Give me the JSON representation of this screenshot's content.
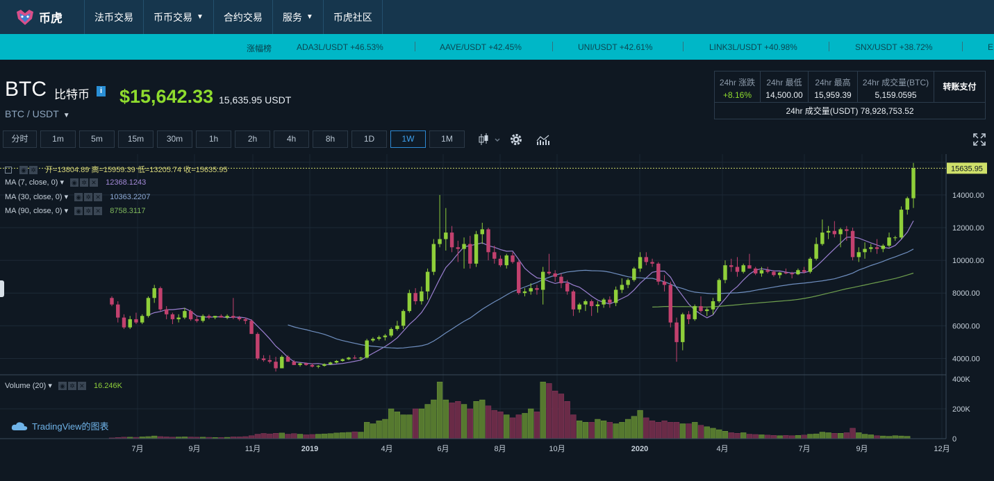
{
  "nav": {
    "brand": "币虎",
    "items": [
      {
        "label": "法币交易",
        "caret": false
      },
      {
        "label": "币币交易",
        "caret": true
      },
      {
        "label": "合约交易",
        "caret": false
      },
      {
        "label": "服务",
        "caret": true
      },
      {
        "label": "币虎社区",
        "caret": false
      }
    ]
  },
  "ticker": {
    "label": "涨幅榜",
    "items": [
      "ADA3L/USDT +46.53%",
      "AAVE/USDT +42.45%",
      "UNI/USDT +42.61%",
      "LINK3L/USDT +40.98%",
      "SNX/USDT +38.72%",
      "E"
    ]
  },
  "header": {
    "symbol": "BTC",
    "symbol_cn": "比特币",
    "info_icon": "i",
    "price": "$15,642.33",
    "price_usdt": "15,635.95 USDT",
    "pair": "BTC / USDT"
  },
  "stats": {
    "change_label": "24hr 涨跌",
    "change_value": "+8.16%",
    "low_label": "24hr 最低",
    "low_value": "14,500.00",
    "high_label": "24hr 最高",
    "high_value": "15,959.39",
    "vol_btc_label": "24hr 成交量(BTC)",
    "vol_btc_value": "5,159.0595",
    "pay_label": "转账支付",
    "vol_usdt": "24hr 成交量(USDT) 78,928,753.52"
  },
  "intervals": [
    "分时",
    "1m",
    "5m",
    "15m",
    "30m",
    "1h",
    "2h",
    "4h",
    "8h",
    "1D",
    "1W",
    "1M"
  ],
  "active_interval": "1W",
  "legend": {
    "ohlc": "开=13804.89  高=15959.39  低=13205.74  收=15635.95",
    "ma7_label": "MA (7, close, 0)",
    "ma7_value": "12368.1243",
    "ma30_label": "MA (30, close, 0)",
    "ma30_value": "10363.2207",
    "ma90_label": "MA (90, close, 0)",
    "ma90_value": "8758.3117",
    "volume_label": "Volume (20)",
    "volume_value": "16.246K",
    "last_price_tag": "15635.95"
  },
  "watermark": "TradingView的图表",
  "colors": {
    "up": "#8fcf3a",
    "down": "#c2416e",
    "ma7": "#9b7fd0",
    "ma30": "#6f8fc0",
    "ma90": "#6fa04e",
    "accent": "#2e8bd6",
    "ticker_bg": "#00b7c7",
    "nav_bg": "#16364d"
  },
  "chart_data": {
    "type": "candlestick",
    "x_tick_labels": [
      "7月",
      "9月",
      "11月",
      "2019",
      "4月",
      "6月",
      "8月",
      "10月",
      "2020",
      "4月",
      "7月",
      "9月",
      "12月"
    ],
    "y_tick_labels": [
      "16000.00",
      "14000.00",
      "12000.00",
      "10000.00",
      "8000.00",
      "6000.00",
      "4000.00"
    ],
    "ylim": [
      3000,
      16500
    ],
    "volume_tick_labels": [
      "400K",
      "200K",
      "0"
    ],
    "volume_ylim": [
      0,
      400000
    ],
    "candles": [
      [
        7700,
        7800,
        7200,
        7300
      ],
      [
        7300,
        7500,
        6200,
        6500
      ],
      [
        6500,
        6700,
        5800,
        5900
      ],
      [
        5900,
        6600,
        5800,
        6400
      ],
      [
        6400,
        6800,
        6100,
        6200
      ],
      [
        6200,
        6700,
        6100,
        6600
      ],
      [
        6600,
        7800,
        6500,
        7700
      ],
      [
        7700,
        8500,
        7400,
        8300
      ],
      [
        8300,
        8400,
        6900,
        7000
      ],
      [
        7000,
        7200,
        6400,
        6700
      ],
      [
        6700,
        6800,
        6100,
        6400
      ],
      [
        6400,
        6700,
        6200,
        6500
      ],
      [
        6500,
        7100,
        6400,
        6900
      ],
      [
        6900,
        7000,
        6300,
        6400
      ],
      [
        6400,
        6600,
        6200,
        6300
      ],
      [
        6300,
        6700,
        6200,
        6600
      ],
      [
        6600,
        6700,
        6400,
        6500
      ],
      [
        6500,
        6600,
        6400,
        6600
      ],
      [
        6600,
        6700,
        6500,
        6500
      ],
      [
        6500,
        6700,
        6400,
        6600
      ],
      [
        6600,
        7700,
        6400,
        6500
      ],
      [
        6500,
        6600,
        6300,
        6400
      ],
      [
        6400,
        6500,
        6100,
        6300
      ],
      [
        6300,
        6400,
        5500,
        5500
      ],
      [
        5500,
        5600,
        3900,
        4000
      ],
      [
        4000,
        4200,
        3800,
        3900
      ],
      [
        3900,
        4200,
        3700,
        3800
      ],
      [
        3800,
        4100,
        3200,
        3400
      ],
      [
        3400,
        4200,
        3400,
        4100
      ],
      [
        4100,
        4200,
        3800,
        3800
      ],
      [
        3800,
        3900,
        3600,
        3600
      ],
      [
        3600,
        3750,
        3500,
        3700
      ],
      [
        3700,
        3750,
        3550,
        3600
      ],
      [
        3600,
        3700,
        3450,
        3500
      ],
      [
        3500,
        3600,
        3400,
        3550
      ],
      [
        3550,
        3700,
        3500,
        3650
      ],
      [
        3650,
        3800,
        3600,
        3750
      ],
      [
        3750,
        3900,
        3700,
        3850
      ],
      [
        3850,
        4000,
        3800,
        3950
      ],
      [
        3950,
        4100,
        3900,
        4050
      ],
      [
        4050,
        4200,
        3950,
        4000
      ],
      [
        4000,
        4100,
        3900,
        4050
      ],
      [
        4050,
        5200,
        4000,
        5100
      ],
      [
        5100,
        5300,
        5000,
        5200
      ],
      [
        5200,
        5400,
        5100,
        5300
      ],
      [
        5300,
        5500,
        5100,
        5400
      ],
      [
        5400,
        5900,
        5300,
        5800
      ],
      [
        5800,
        6300,
        5700,
        6000
      ],
      [
        6000,
        7000,
        5800,
        6900
      ],
      [
        6900,
        8200,
        6800,
        8000
      ],
      [
        8000,
        8300,
        7300,
        7500
      ],
      [
        7500,
        8400,
        7300,
        8100
      ],
      [
        8100,
        9500,
        7600,
        9300
      ],
      [
        9300,
        11300,
        9100,
        11000
      ],
      [
        11000,
        14000,
        10800,
        11300
      ],
      [
        11300,
        13200,
        10600,
        11700
      ],
      [
        11700,
        12100,
        10500,
        10800
      ],
      [
        10800,
        11200,
        9900,
        10700
      ],
      [
        10700,
        11400,
        9500,
        11000
      ],
      [
        11000,
        11500,
        9500,
        9800
      ],
      [
        9800,
        11800,
        9600,
        11600
      ],
      [
        11600,
        12300,
        11000,
        11900
      ],
      [
        11900,
        12000,
        10000,
        10500
      ],
      [
        10500,
        10900,
        9800,
        10100
      ],
      [
        10100,
        10300,
        9600,
        9700
      ],
      [
        9700,
        10400,
        9500,
        10300
      ],
      [
        10300,
        10500,
        9800,
        9900
      ],
      [
        9900,
        10000,
        7900,
        8000
      ],
      [
        8000,
        8300,
        7800,
        8100
      ],
      [
        8100,
        8600,
        7900,
        8300
      ],
      [
        8300,
        8500,
        7900,
        8200
      ],
      [
        8200,
        9600,
        7300,
        9300
      ],
      [
        9300,
        10400,
        9100,
        9200
      ],
      [
        9200,
        9400,
        8700,
        9000
      ],
      [
        9000,
        9200,
        8300,
        8600
      ],
      [
        8600,
        8800,
        7900,
        8100
      ],
      [
        8100,
        8200,
        6600,
        7000
      ],
      [
        7000,
        7400,
        6800,
        7300
      ],
      [
        7300,
        7600,
        6900,
        7500
      ],
      [
        7500,
        7600,
        6600,
        7200
      ],
      [
        7200,
        7500,
        6800,
        7300
      ],
      [
        7300,
        7700,
        7100,
        7600
      ],
      [
        7600,
        7800,
        7100,
        7400
      ],
      [
        7400,
        8400,
        7200,
        8200
      ],
      [
        8200,
        8900,
        8000,
        8500
      ],
      [
        8500,
        8900,
        8300,
        8800
      ],
      [
        8800,
        9600,
        8700,
        9500
      ],
      [
        9500,
        10500,
        9300,
        10200
      ],
      [
        10200,
        10500,
        9700,
        9900
      ],
      [
        9900,
        10100,
        9600,
        9800
      ],
      [
        9800,
        9900,
        8500,
        8700
      ],
      [
        8700,
        9100,
        8100,
        8500
      ],
      [
        8500,
        8700,
        5900,
        6200
      ],
      [
        6200,
        6500,
        3800,
        5000
      ],
      [
        5000,
        6800,
        4500,
        6700
      ],
      [
        6700,
        6900,
        6100,
        6400
      ],
      [
        6400,
        7300,
        6300,
        7200
      ],
      [
        7200,
        7800,
        6800,
        6900
      ],
      [
        6900,
        7100,
        6600,
        7000
      ],
      [
        7000,
        7700,
        6700,
        7500
      ],
      [
        7500,
        8900,
        7400,
        8800
      ],
      [
        8800,
        10000,
        8600,
        9700
      ],
      [
        9700,
        10100,
        9300,
        9600
      ],
      [
        9600,
        10200,
        9000,
        9300
      ],
      [
        9300,
        9800,
        9200,
        9700
      ],
      [
        9700,
        10400,
        9600,
        9500
      ],
      [
        9500,
        9600,
        9100,
        9200
      ],
      [
        9200,
        9600,
        9000,
        9400
      ],
      [
        9400,
        9600,
        9200,
        9300
      ],
      [
        9300,
        9400,
        9000,
        9100
      ],
      [
        9100,
        9300,
        8900,
        9250
      ],
      [
        9250,
        9500,
        9150,
        9200
      ],
      [
        9200,
        9300,
        8900,
        9150
      ],
      [
        9150,
        9500,
        9100,
        9400
      ],
      [
        9400,
        9600,
        9200,
        9300
      ],
      [
        9300,
        10200,
        9200,
        10100
      ],
      [
        10100,
        11400,
        10000,
        11000
      ],
      [
        11000,
        12500,
        10900,
        11700
      ],
      [
        11700,
        12100,
        11300,
        11800
      ],
      [
        11800,
        12400,
        11400,
        11600
      ],
      [
        11600,
        12000,
        10800,
        11900
      ],
      [
        11900,
        12100,
        11200,
        11800
      ],
      [
        11800,
        12000,
        10000,
        10200
      ],
      [
        10200,
        10800,
        9900,
        10500
      ],
      [
        10500,
        11100,
        10100,
        10700
      ],
      [
        10700,
        11000,
        10500,
        10800
      ],
      [
        10800,
        11300,
        10400,
        10700
      ],
      [
        10700,
        11000,
        10500,
        10900
      ],
      [
        10900,
        11700,
        10800,
        11400
      ],
      [
        11400,
        11500,
        11200,
        11400
      ],
      [
        11400,
        13300,
        11300,
        13100
      ],
      [
        13100,
        13900,
        12800,
        13800
      ],
      [
        13800,
        15959,
        13205,
        15636
      ]
    ],
    "volumes": [
      5,
      8,
      10,
      10,
      9,
      12,
      14,
      18,
      14,
      12,
      10,
      11,
      12,
      11,
      10,
      10,
      9,
      8,
      8,
      9,
      12,
      12,
      14,
      20,
      30,
      35,
      32,
      36,
      38,
      30,
      34,
      30,
      26,
      28,
      30,
      32,
      34,
      38,
      40,
      42,
      46,
      44,
      110,
      100,
      120,
      130,
      200,
      180,
      160,
      160,
      200,
      200,
      230,
      260,
      380,
      260,
      240,
      250,
      230,
      200,
      250,
      260,
      220,
      190,
      180,
      160,
      140,
      160,
      170,
      200,
      180,
      380,
      370,
      320,
      300,
      250,
      160,
      120,
      110,
      110,
      130,
      120,
      110,
      100,
      110,
      130,
      150,
      190,
      140,
      120,
      110,
      120,
      110,
      110,
      100,
      100,
      110,
      90,
      80,
      70,
      60,
      50,
      40,
      36,
      40,
      30,
      28,
      26,
      24,
      22,
      20,
      22,
      20,
      22,
      24,
      30,
      32,
      44,
      40,
      36,
      36,
      40,
      70,
      40,
      30,
      26,
      20,
      18,
      16,
      20,
      18,
      16
    ],
    "ma_series": [
      {
        "name": "MA (7, close, 0)",
        "last": 12368.1243
      },
      {
        "name": "MA (30, close, 0)",
        "last": 10363.2207
      },
      {
        "name": "MA (90, close, 0)",
        "last": 8758.3117
      }
    ]
  }
}
